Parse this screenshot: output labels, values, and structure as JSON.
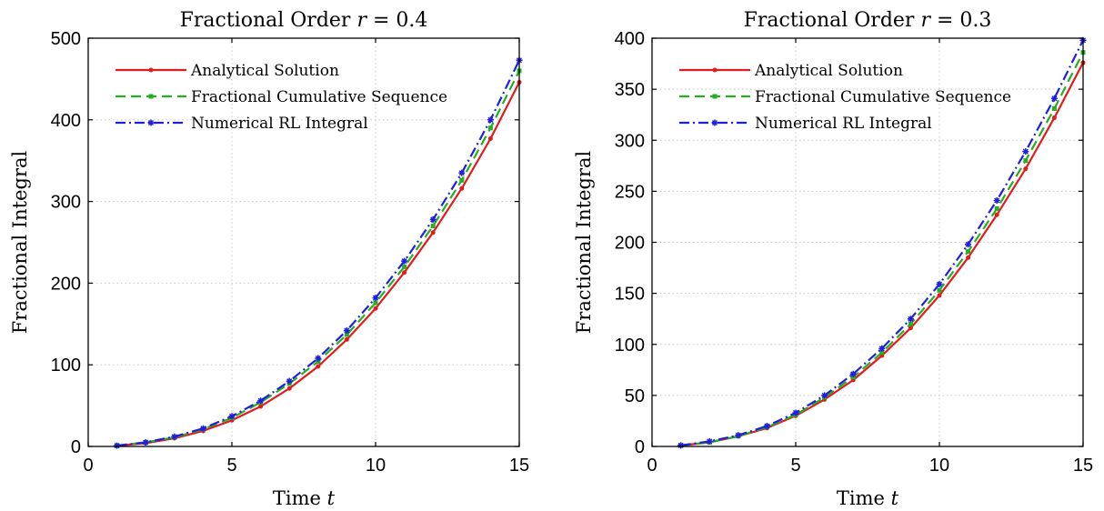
{
  "colors": {
    "analytical": "#e41a1c",
    "cumulative": "#22b022",
    "numerical": "#1f1fdd",
    "grid": "#c8c8c8",
    "axes": "#000000"
  },
  "chart_data": [
    {
      "type": "line",
      "title_prefix": "Fractional Order ",
      "title_var": "r",
      "title_suffix": " = 0.4",
      "xlabel_prefix": "Time ",
      "xlabel_var": "t",
      "ylabel": "Fractional Integral",
      "xlim": [
        0,
        15
      ],
      "ylim": [
        0,
        500
      ],
      "xticks": [
        0,
        5,
        10,
        15
      ],
      "yticks": [
        0,
        100,
        200,
        300,
        400,
        500
      ],
      "grid": true,
      "legend_position": "top-left",
      "x": [
        1,
        2,
        3,
        4,
        5,
        6,
        7,
        8,
        9,
        10,
        11,
        12,
        13,
        14,
        15
      ],
      "series": [
        {
          "name": "Analytical Solution",
          "color": "#e41a1c",
          "style": "solid",
          "marker": "dot",
          "values": [
            1,
            4,
            10,
            19,
            32,
            49,
            71,
            98,
            131,
            169,
            213,
            262,
            316,
            377,
            446
          ]
        },
        {
          "name": "Fractional Cumulative Sequence",
          "color": "#22b022",
          "style": "dashed",
          "marker": "square",
          "values": [
            1,
            5,
            11,
            21,
            35,
            54,
            77,
            104,
            137,
            176,
            220,
            270,
            326,
            390,
            460
          ]
        },
        {
          "name": "Numerical RL Integral",
          "color": "#1f1fdd",
          "style": "dashdot",
          "marker": "star",
          "values": [
            1,
            5,
            12,
            22,
            37,
            56,
            80,
            108,
            142,
            182,
            227,
            278,
            335,
            400,
            473
          ]
        }
      ]
    },
    {
      "type": "line",
      "title_prefix": "Fractional Order ",
      "title_var": "r",
      "title_suffix": " = 0.3",
      "xlabel_prefix": "Time ",
      "xlabel_var": "t",
      "ylabel": "Fractional Integral",
      "xlim": [
        0,
        15
      ],
      "ylim": [
        0,
        400
      ],
      "xticks": [
        0,
        5,
        10,
        15
      ],
      "yticks": [
        0,
        50,
        100,
        150,
        200,
        250,
        300,
        350,
        400
      ],
      "grid": true,
      "legend_position": "top-left",
      "x": [
        1,
        2,
        3,
        4,
        5,
        6,
        7,
        8,
        9,
        10,
        11,
        12,
        13,
        14,
        15
      ],
      "series": [
        {
          "name": "Analytical Solution",
          "color": "#e41a1c",
          "style": "solid",
          "marker": "dot",
          "values": [
            1,
            4,
            10,
            18,
            30,
            46,
            65,
            89,
            116,
            148,
            185,
            227,
            272,
            322,
            376
          ]
        },
        {
          "name": "Fractional Cumulative Sequence",
          "color": "#22b022",
          "style": "dashed",
          "marker": "square",
          "values": [
            1,
            4,
            10,
            19,
            31,
            48,
            68,
            92,
            120,
            153,
            191,
            233,
            280,
            331,
            386
          ]
        },
        {
          "name": "Numerical RL Integral",
          "color": "#1f1fdd",
          "style": "dashdot",
          "marker": "star",
          "values": [
            1,
            5,
            11,
            20,
            33,
            50,
            71,
            96,
            125,
            159,
            198,
            241,
            289,
            341,
            398
          ]
        }
      ]
    }
  ]
}
